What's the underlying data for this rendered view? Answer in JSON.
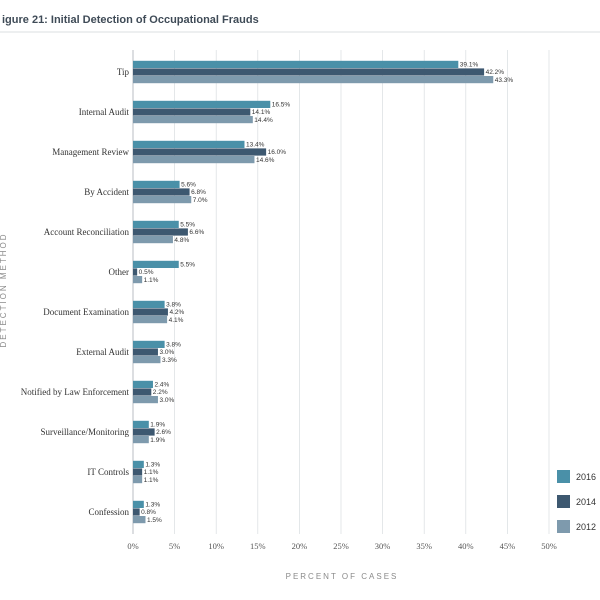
{
  "chart_data": {
    "type": "bar",
    "orientation": "horizontal",
    "title": "igure 21: Initial Detection of Occupational Frauds",
    "xlabel": "PERCENT OF CASES",
    "ylabel": "DETECTION METHOD",
    "xlim": [
      0,
      50
    ],
    "x_ticks": [
      "0%",
      "5%",
      "10%",
      "15%",
      "20%",
      "25%",
      "30%",
      "35%",
      "40%",
      "45%",
      "50%"
    ],
    "value_format": "percent_one_decimal",
    "legend_position": "bottom-right",
    "grid": true,
    "categories": [
      "Tip",
      "Internal Audit",
      "Management Review",
      "By Accident",
      "Account Reconciliation",
      "Other",
      "Document Examination",
      "External Audit",
      "Notified by Law Enforcement",
      "Surveillance/Monitoring",
      "IT Controls",
      "Confession"
    ],
    "series": [
      {
        "name": "2016",
        "color": "#4a90a8",
        "values": [
          39.1,
          16.5,
          13.4,
          5.6,
          5.5,
          5.5,
          3.8,
          3.8,
          2.4,
          1.9,
          1.3,
          1.3
        ]
      },
      {
        "name": "2014",
        "color": "#3d5870",
        "values": [
          42.2,
          14.1,
          16.0,
          6.8,
          6.6,
          0.5,
          4.2,
          3.0,
          2.2,
          2.6,
          1.1,
          0.8
        ]
      },
      {
        "name": "2012",
        "color": "#7e9aad",
        "values": [
          43.3,
          14.4,
          14.6,
          7.0,
          4.8,
          1.1,
          4.1,
          3.3,
          3.0,
          1.9,
          1.1,
          1.5
        ]
      }
    ]
  }
}
